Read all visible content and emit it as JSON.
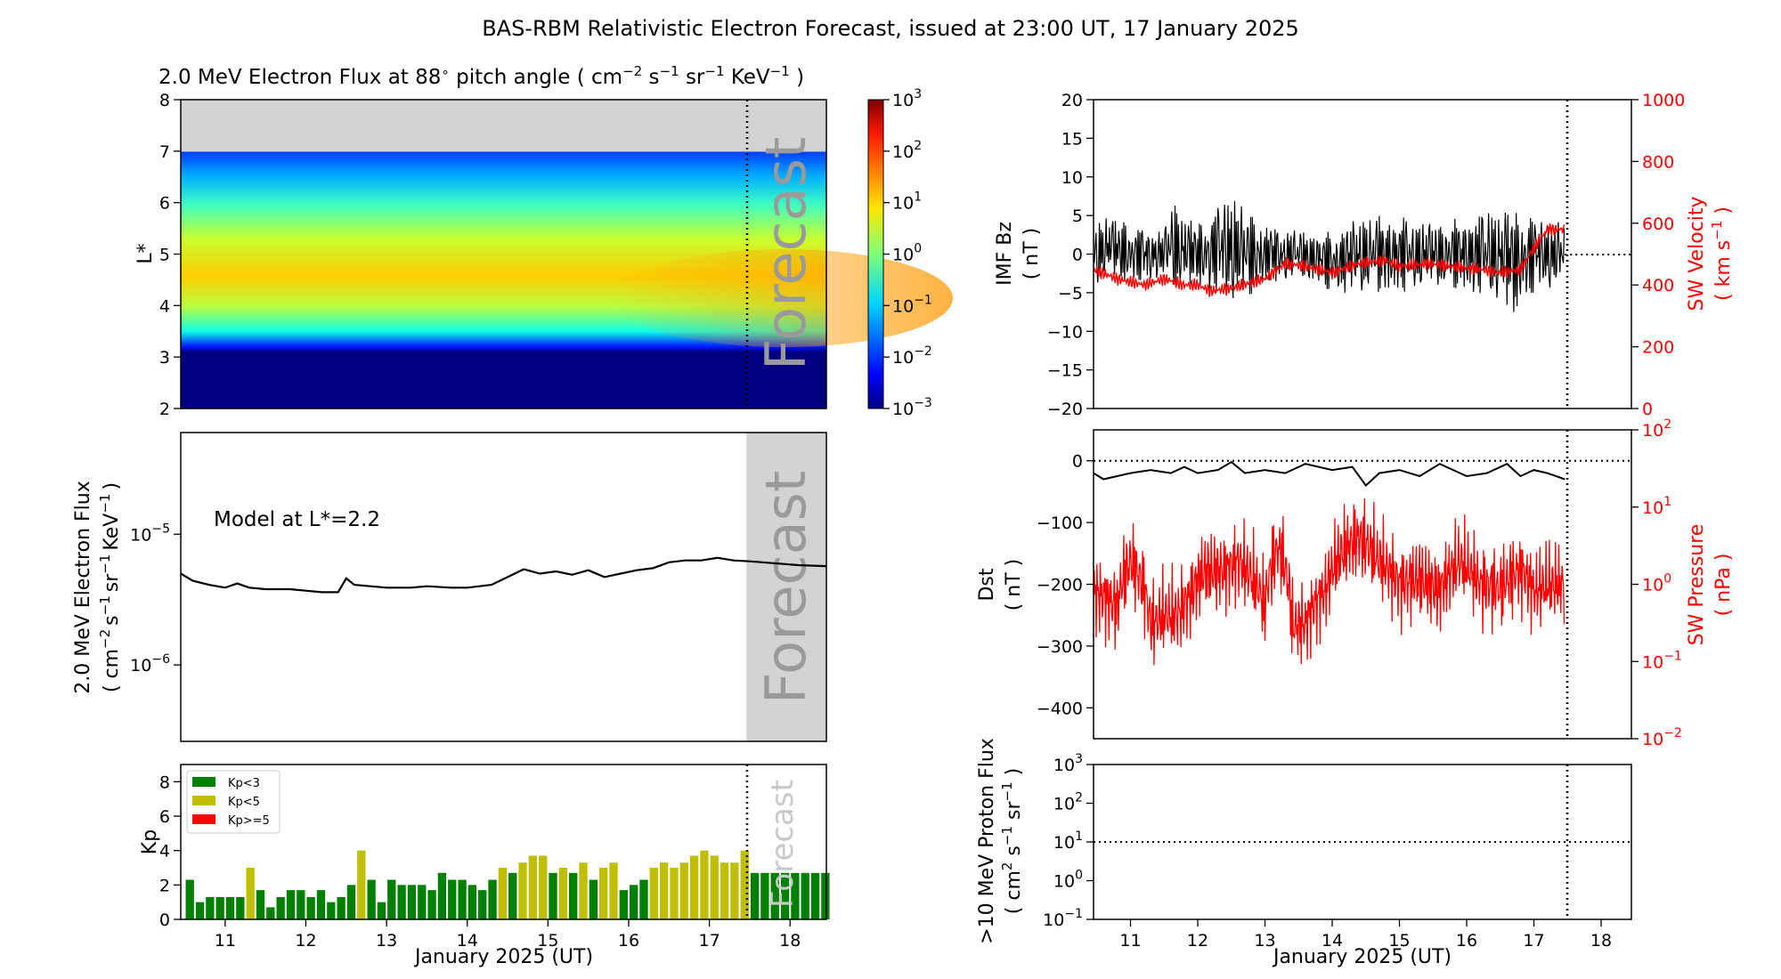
{
  "title": "BAS-RBM Relativistic Electron Forecast, issued at 23:00 UT, 17 January 2025",
  "forecast_label": "Forecast",
  "forecast_start_day": 17.46,
  "x_axis": {
    "label": "January 2025 (UT)",
    "range": [
      10.45,
      18.45
    ],
    "ticks": [
      "11",
      "12",
      "13",
      "14",
      "15",
      "16",
      "17",
      "18"
    ]
  },
  "colors": {
    "kp_low": "#008000",
    "kp_mid": "#bfbf00",
    "kp_high": "#ff0000",
    "sw": "#ff0000",
    "line": "#000000",
    "data_gap": "#d3d3d3"
  },
  "chart_data": [
    {
      "id": "flux_map",
      "type": "heatmap",
      "title_parts": {
        "pre": "2.0 MeV Electron Flux at 88",
        "deg": "∘",
        "mid": " pitch angle ( cm",
        "e1": "−2",
        "s": " s",
        "e2": "−1",
        "sr": " sr",
        "e3": "−1",
        "kev": " KeV",
        "e4": "−1",
        "end": " )"
      },
      "ylabel": "L*",
      "ylim": [
        2,
        8
      ],
      "yticks": [
        "2",
        "3",
        "4",
        "5",
        "6",
        "7",
        "8"
      ],
      "colorbar": {
        "scale": "log",
        "range": [
          0.001,
          1000
        ],
        "ticks": [
          {
            "b": "10",
            "e": "3"
          },
          {
            "b": "10",
            "e": "2"
          },
          {
            "b": "10",
            "e": "1"
          },
          {
            "b": "10",
            "e": "0"
          },
          {
            "b": "10",
            "e": "−1"
          },
          {
            "b": "10",
            "e": "−2"
          },
          {
            "b": "10",
            "e": "−3"
          }
        ]
      },
      "no_data_above_L": 7.0,
      "profile_by_L": [
        [
          2.0,
          0.001
        ],
        [
          3.1,
          0.001
        ],
        [
          3.3,
          0.02
        ],
        [
          3.6,
          1
        ],
        [
          4.2,
          8
        ],
        [
          5.0,
          2
        ],
        [
          5.8,
          0.4
        ],
        [
          6.5,
          0.1
        ],
        [
          7.0,
          0.02
        ]
      ]
    },
    {
      "id": "flux_line",
      "type": "line",
      "ylabel_parts": {
        "l1": "2.0 MeV Electron Flux",
        "l2a": "( cm",
        "e1": "−2",
        "s": "s",
        "e2": "−1",
        "sr": "sr",
        "e3": "−1",
        "kev": "KeV",
        "e4": "−1",
        "end": ")"
      },
      "annotation": "Model at L*=2.2",
      "yscale": "log",
      "ylim": [
        2.6e-07,
        6e-05
      ],
      "yticks": [
        {
          "b": "10",
          "e": "−5"
        },
        {
          "b": "10",
          "e": "−6"
        }
      ],
      "x": [
        10.45,
        10.6,
        10.8,
        11.0,
        11.15,
        11.3,
        11.5,
        11.8,
        12.0,
        12.2,
        12.4,
        12.5,
        12.6,
        12.8,
        13.0,
        13.3,
        13.5,
        13.8,
        14.0,
        14.3,
        14.5,
        14.7,
        14.9,
        15.1,
        15.3,
        15.5,
        15.7,
        15.9,
        16.1,
        16.3,
        16.5,
        16.7,
        16.9,
        17.1,
        17.3,
        17.5,
        17.8,
        18.1,
        18.45
      ],
      "y": [
        5e-06,
        4.4e-06,
        4.1e-06,
        3.9e-06,
        4.2e-06,
        3.9e-06,
        3.8e-06,
        3.8e-06,
        3.7e-06,
        3.6e-06,
        3.6e-06,
        4.6e-06,
        4.1e-06,
        4e-06,
        3.9e-06,
        3.9e-06,
        4e-06,
        3.9e-06,
        3.9e-06,
        4.1e-06,
        4.7e-06,
        5.4e-06,
        5e-06,
        5.2e-06,
        4.9e-06,
        5.3e-06,
        4.7e-06,
        5e-06,
        5.3e-06,
        5.5e-06,
        6.1e-06,
        6.3e-06,
        6.3e-06,
        6.6e-06,
        6.3e-06,
        6.2e-06,
        6e-06,
        5.8e-06,
        5.7e-06
      ]
    },
    {
      "id": "kp",
      "type": "bar",
      "ylabel": "Kp",
      "ylim": [
        0,
        9
      ],
      "yticks": [
        "0",
        "2",
        "4",
        "6",
        "8"
      ],
      "legend": [
        "Kp<3",
        "Kp<5",
        "Kp>=5"
      ],
      "legend_position": "top-left",
      "bin_width_days": 0.125,
      "x_start": 10.5,
      "values": [
        2.3,
        1.0,
        1.3,
        1.3,
        1.3,
        1.3,
        3.0,
        1.7,
        0.7,
        1.3,
        1.7,
        1.7,
        1.3,
        1.7,
        1.0,
        1.3,
        2.0,
        4.0,
        2.3,
        1.0,
        2.3,
        2.0,
        2.0,
        2.0,
        1.7,
        2.7,
        2.3,
        2.3,
        2.0,
        1.7,
        2.3,
        3.0,
        2.7,
        3.3,
        3.7,
        3.7,
        2.7,
        3.0,
        2.7,
        3.3,
        2.3,
        3.0,
        3.3,
        1.7,
        2.0,
        2.3,
        3.0,
        3.3,
        3.0,
        3.3,
        3.7,
        4.0,
        3.7,
        3.3,
        3.3,
        4.0,
        2.7,
        2.7,
        2.7,
        2.7,
        2.7,
        2.7,
        2.7,
        2.7
      ]
    },
    {
      "id": "imf_sw",
      "type": "line",
      "ylabel": [
        "IMF Bz",
        "( nT )"
      ],
      "ylim": [
        -20,
        20
      ],
      "yticks": [
        "20",
        "15",
        "10",
        "5",
        "0",
        "−5",
        "−10",
        "−15",
        "−20"
      ],
      "ylabel_right_parts": {
        "l1": "SW Velocity",
        "l2a": "( km s",
        "e": "−1",
        "end": " )"
      },
      "ylim_right": [
        0,
        1000
      ],
      "yticks_right": [
        "1000",
        "800",
        "600",
        "400",
        "200",
        "0"
      ],
      "data_end_day": 17.46,
      "series_bz": {
        "x": [
          10.45,
          10.7,
          11.0,
          11.5,
          11.6,
          12.0,
          12.5,
          12.7,
          13.0,
          13.5,
          14.0,
          14.5,
          15.0,
          15.5,
          16.0,
          16.5,
          16.7,
          17.0,
          17.46
        ],
        "y": [
          0,
          1,
          0,
          0,
          1,
          0,
          1,
          0,
          0,
          0,
          -1,
          0,
          0,
          0,
          0,
          0,
          -1,
          0,
          0
        ],
        "amplitude": [
          4,
          4,
          4,
          3,
          6,
          4,
          7,
          6,
          4,
          3,
          4,
          5,
          5,
          4,
          5,
          6,
          7,
          5,
          4
        ]
      },
      "series_velocity": {
        "x": [
          10.45,
          10.8,
          11.2,
          11.5,
          11.8,
          12.0,
          12.2,
          12.5,
          13.0,
          13.3,
          13.6,
          14.0,
          14.4,
          14.8,
          15.0,
          15.4,
          15.8,
          16.2,
          16.5,
          16.8,
          17.0,
          17.2,
          17.46
        ],
        "y": [
          450,
          420,
          400,
          420,
          400,
          400,
          380,
          390,
          420,
          470,
          460,
          440,
          470,
          480,
          460,
          470,
          460,
          450,
          440,
          450,
          520,
          580,
          580
        ]
      }
    },
    {
      "id": "dst_pressure",
      "type": "line",
      "ylabel": [
        "Dst",
        "( nT )"
      ],
      "ylim": [
        -450,
        50
      ],
      "yticks": [
        "0",
        "−100",
        "−200",
        "−300",
        "−400"
      ],
      "ylabel_right_parts": {
        "l1": "SW Pressure",
        "l2": "( nPa )"
      },
      "yscale_right": "log",
      "ylim_right": [
        0.01,
        100
      ],
      "yticks_right": [
        {
          "b": "10",
          "e": "2"
        },
        {
          "b": "10",
          "e": "1"
        },
        {
          "b": "10",
          "e": "0"
        },
        {
          "b": "10",
          "e": "−1"
        },
        {
          "b": "10",
          "e": "−2"
        }
      ],
      "series_dst": {
        "x": [
          10.45,
          10.6,
          10.8,
          11.0,
          11.3,
          11.6,
          11.8,
          12.0,
          12.3,
          12.5,
          12.7,
          13.0,
          13.3,
          13.6,
          14.0,
          14.3,
          14.5,
          14.7,
          15.0,
          15.3,
          15.6,
          16.0,
          16.3,
          16.6,
          16.8,
          17.0,
          17.2,
          17.46
        ],
        "y": [
          -20,
          -30,
          -25,
          -20,
          -15,
          -20,
          -10,
          -20,
          -15,
          -2,
          -20,
          -15,
          -20,
          -5,
          -15,
          -10,
          -40,
          -20,
          -15,
          -25,
          -5,
          -25,
          -20,
          -5,
          -25,
          -15,
          -20,
          -30
        ]
      },
      "series_pressure": {
        "x": [
          10.45,
          10.8,
          11.0,
          11.3,
          11.5,
          11.7,
          11.9,
          12.1,
          12.4,
          12.6,
          13.0,
          13.2,
          13.4,
          13.6,
          13.9,
          14.2,
          14.4,
          14.7,
          15.0,
          15.3,
          15.6,
          15.9,
          16.2,
          16.5,
          16.8,
          17.0,
          17.2,
          17.46
        ],
        "y": [
          0.8,
          0.5,
          2.0,
          0.3,
          0.4,
          0.4,
          0.7,
          1.5,
          1.5,
          2.0,
          0.5,
          3.0,
          0.3,
          0.3,
          0.8,
          3.0,
          4.0,
          2.0,
          1.0,
          1.2,
          0.8,
          2.0,
          1.0,
          0.9,
          1.5,
          0.8,
          1.0,
          1.0
        ]
      }
    },
    {
      "id": "proton",
      "type": "line",
      "ylabel_parts": {
        "l1": ">10 MeV Proton Flux",
        "l2a": "( cm",
        "e1": "2",
        "s": " s",
        "e2": "−1",
        "sr": " sr",
        "e3": "−1",
        "end": " )"
      },
      "yscale": "log",
      "ylim": [
        0.1,
        1000
      ],
      "yticks": [
        {
          "b": "10",
          "e": "3"
        },
        {
          "b": "10",
          "e": "2"
        },
        {
          "b": "10",
          "e": "1"
        },
        {
          "b": "10",
          "e": "0"
        },
        {
          "b": "10",
          "e": "−1"
        }
      ],
      "threshold": 10
    }
  ]
}
